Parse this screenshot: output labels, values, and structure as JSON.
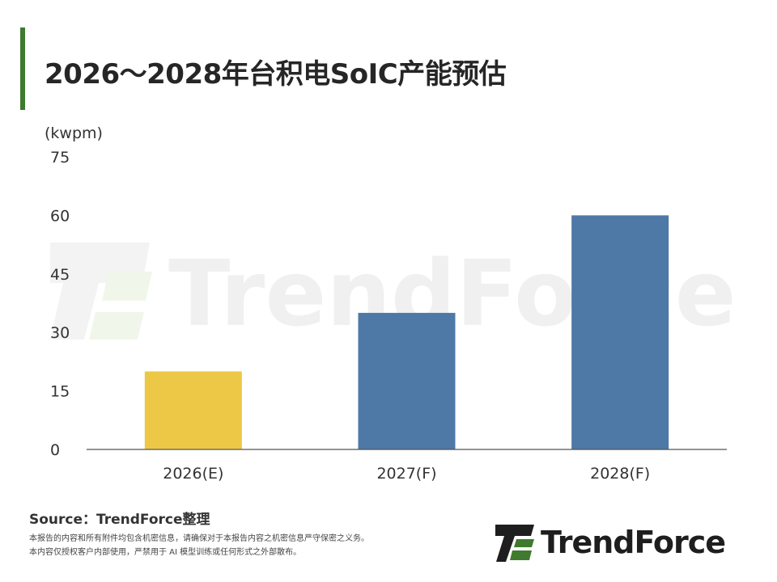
{
  "header": {
    "title": "2026～2028年台积电SoIC产能预估"
  },
  "chart_data": {
    "type": "bar",
    "title": "2026～2028年台积电SoIC产能预估",
    "ylabel": "(kwpm)",
    "xlabel": "",
    "categories": [
      "2026(E)",
      "2027(F)",
      "2028(F)"
    ],
    "values": [
      20,
      35,
      60
    ],
    "bar_colors": [
      "#ecc846",
      "#4e78a6",
      "#4e78a6"
    ],
    "ylim": [
      0,
      75
    ],
    "yticks": [
      0,
      15,
      30,
      45,
      60,
      75
    ],
    "grid": false,
    "legend": "none"
  },
  "footer": {
    "source": "Source：TrendForce整理",
    "disclaimer_line1": "本报告的内容和所有附件均包含机密信息，请确保对于本报告内容之机密信息严守保密之义务。",
    "disclaimer_line2": "本内容仅授权客户内部使用，严禁用于 AI 模型训练或任何形式之外部散布。"
  },
  "watermark": {
    "text": "TrendForce"
  },
  "logo": {
    "text": "TrendForce",
    "colors": {
      "green": "#3f7a2e",
      "dark": "#1e1e1e"
    },
    "icon": "trendforce-logo-icon"
  },
  "colors": {
    "accent": "#3f7a2e",
    "axis": "#555555"
  }
}
